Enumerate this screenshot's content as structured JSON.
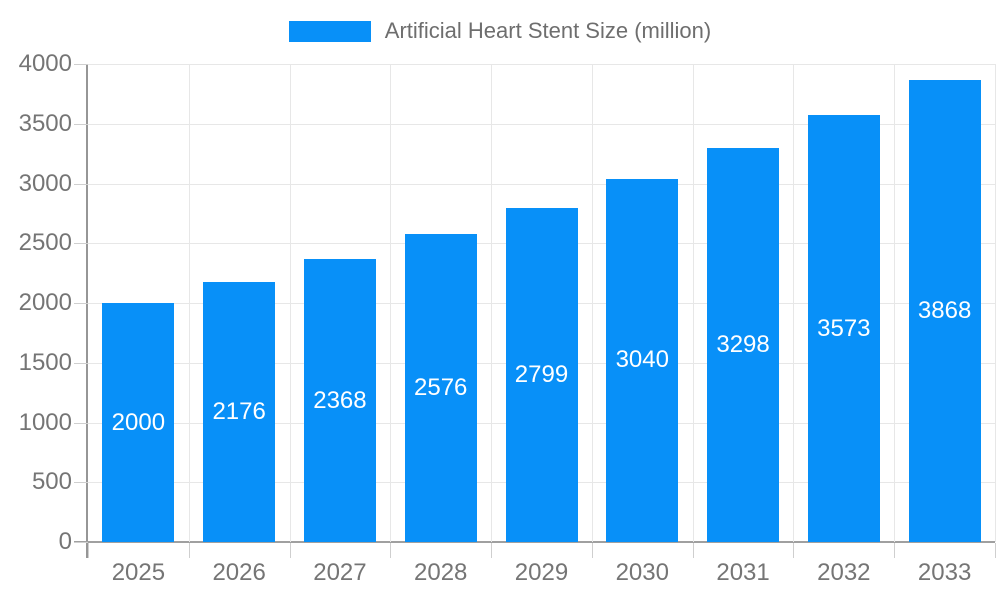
{
  "chart_data": {
    "type": "bar",
    "title": "Artificial Heart Stent Size (million)",
    "categories": [
      "2025",
      "2026",
      "2027",
      "2028",
      "2029",
      "2030",
      "2031",
      "2032",
      "2033"
    ],
    "values": [
      2000,
      2176,
      2368,
      2576,
      2799,
      3040,
      3298,
      3573,
      3868
    ],
    "bar_labels": [
      "2000",
      "2176",
      "2368",
      "2576",
      "2799",
      "3040",
      "3298",
      "3573",
      "3868"
    ],
    "xlabel": "",
    "ylabel": "",
    "ylim": [
      0,
      4000
    ],
    "ytick_step": 500,
    "yticks": [
      0,
      500,
      1000,
      1500,
      2000,
      2500,
      3000,
      3500,
      4000
    ],
    "grid": true,
    "legend_position": "top-center",
    "colors": {
      "bar": "#0890f8",
      "bar_label": "#ffffff",
      "axis_label": "#757575",
      "legend_text": "#6e6e6e",
      "gridline": "#e7e7e7",
      "axis_line": "#969696",
      "background": "#ffffff"
    }
  }
}
